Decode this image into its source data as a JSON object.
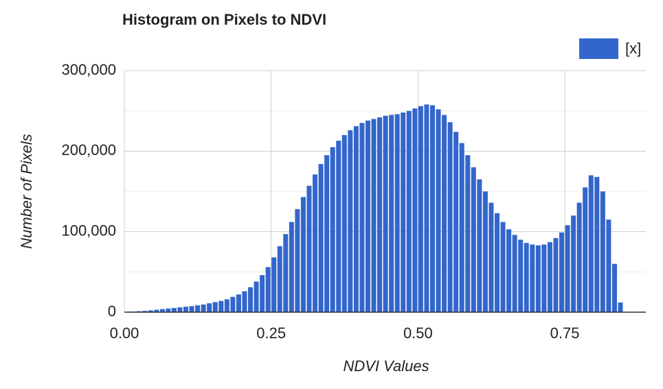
{
  "chart_data": {
    "type": "histogram",
    "title": "Histogram on Pixels to NDVI",
    "x_label": "NDVI Values",
    "y_label": "Number of Pixels",
    "bins": [
      0,
      0.01,
      0.02,
      0.03,
      0.04,
      0.05,
      0.06,
      0.07,
      0.08,
      0.09,
      0.1,
      0.11,
      0.12,
      0.13,
      0.14,
      0.15,
      0.16,
      0.17,
      0.18,
      0.19,
      0.2,
      0.21,
      0.22,
      0.23,
      0.24,
      0.25,
      0.26,
      0.27,
      0.28,
      0.29,
      0.3,
      0.31,
      0.32,
      0.33,
      0.34,
      0.35,
      0.36,
      0.37,
      0.38,
      0.39,
      0.4,
      0.41,
      0.42,
      0.43,
      0.44,
      0.45,
      0.46,
      0.47,
      0.48,
      0.49,
      0.5,
      0.51,
      0.52,
      0.53,
      0.54,
      0.55,
      0.56,
      0.57,
      0.58,
      0.59,
      0.6,
      0.61,
      0.62,
      0.63,
      0.64,
      0.65,
      0.66,
      0.67,
      0.68,
      0.69,
      0.7,
      0.71,
      0.72,
      0.73,
      0.74,
      0.75,
      0.76,
      0.77,
      0.78,
      0.79,
      0.8,
      0.81,
      0.82,
      0.83,
      0.84,
      0.85
    ],
    "series": [
      {
        "name": "[x]",
        "color": "#3366cc",
        "values": [
          500,
          800,
          1200,
          1600,
          2200,
          3000,
          3800,
          4500,
          5200,
          6000,
          6800,
          7500,
          8500,
          9500,
          11000,
          12500,
          14000,
          16000,
          19000,
          22000,
          26000,
          31000,
          38000,
          46000,
          56000,
          68000,
          82000,
          97000,
          112000,
          128000,
          143000,
          157000,
          171000,
          184000,
          195000,
          205000,
          213000,
          220000,
          226000,
          231000,
          235000,
          238000,
          240000,
          242000,
          244000,
          245000,
          246000,
          248000,
          250000,
          253000,
          256000,
          258000,
          257000,
          252000,
          245000,
          236000,
          224000,
          210000,
          195000,
          180000,
          165000,
          150000,
          136000,
          123000,
          112000,
          103000,
          96000,
          90000,
          86000,
          84000,
          83000,
          84000,
          87000,
          92000,
          99000,
          108000,
          120000,
          136000,
          155000,
          170000,
          168000,
          150000,
          115000,
          60000,
          12000
        ]
      }
    ],
    "xlim": [
      0,
      0.888
    ],
    "ylim": [
      0,
      300000
    ],
    "xticks": [
      {
        "value": 0,
        "label": "0.00"
      },
      {
        "value": 0.25,
        "label": "0.25"
      },
      {
        "value": 0.5,
        "label": "0.50"
      },
      {
        "value": 0.75,
        "label": "0.75"
      }
    ],
    "yticks": [
      0,
      {
        "value": 100000,
        "label": "100,000"
      },
      {
        "value": 200000,
        "label": "200,000"
      },
      {
        "value": 300000,
        "label": "300,000"
      }
    ],
    "y_minor_gridlines": [
      50000,
      150000,
      250000
    ],
    "grid": true,
    "legend": "top-right"
  }
}
